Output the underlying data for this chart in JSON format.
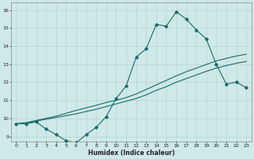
{
  "xlabel": "Humidex (Indice chaleur)",
  "bg_color": "#cfe8e8",
  "grid_color": "#b8d4d4",
  "line_color": "#1a6b6b",
  "xlim": [
    -0.5,
    23.5
  ],
  "ylim": [
    8.7,
    16.4
  ],
  "xticks": [
    0,
    1,
    2,
    3,
    4,
    5,
    6,
    7,
    8,
    9,
    10,
    11,
    12,
    13,
    14,
    15,
    16,
    17,
    18,
    19,
    20,
    21,
    22,
    23
  ],
  "yticks": [
    9,
    10,
    11,
    12,
    13,
    14,
    15,
    16
  ],
  "line1_x": [
    0,
    1,
    2,
    3,
    4,
    5,
    6,
    7,
    8,
    9,
    10,
    11,
    12,
    13,
    14,
    15,
    16,
    17,
    18,
    19,
    20,
    21,
    22,
    23
  ],
  "line1_y": [
    9.7,
    9.7,
    9.8,
    9.4,
    9.1,
    8.75,
    8.65,
    9.1,
    9.5,
    10.1,
    11.1,
    11.8,
    13.4,
    13.85,
    15.2,
    15.1,
    15.9,
    15.5,
    14.9,
    14.4,
    13.0,
    11.9,
    12.0,
    11.7
  ],
  "line2_x": [
    0,
    1,
    2,
    3,
    4,
    5,
    6,
    7,
    8,
    9,
    10,
    11,
    12,
    13,
    14,
    15,
    16,
    17,
    18,
    19,
    20,
    21,
    22,
    23
  ],
  "line2_y": [
    9.7,
    9.75,
    9.85,
    9.95,
    10.05,
    10.15,
    10.25,
    10.38,
    10.5,
    10.65,
    10.8,
    10.95,
    11.1,
    11.3,
    11.55,
    11.75,
    12.0,
    12.2,
    12.4,
    12.6,
    12.78,
    12.92,
    13.05,
    13.15
  ],
  "line3_x": [
    0,
    1,
    2,
    3,
    4,
    5,
    6,
    7,
    8,
    9,
    10,
    11,
    12,
    13,
    14,
    15,
    16,
    17,
    18,
    19,
    20,
    21,
    22,
    23
  ],
  "line3_y": [
    9.7,
    9.76,
    9.88,
    10.0,
    10.12,
    10.28,
    10.44,
    10.58,
    10.72,
    10.88,
    11.0,
    11.15,
    11.35,
    11.6,
    11.85,
    12.1,
    12.35,
    12.58,
    12.78,
    12.98,
    13.18,
    13.32,
    13.45,
    13.55
  ]
}
